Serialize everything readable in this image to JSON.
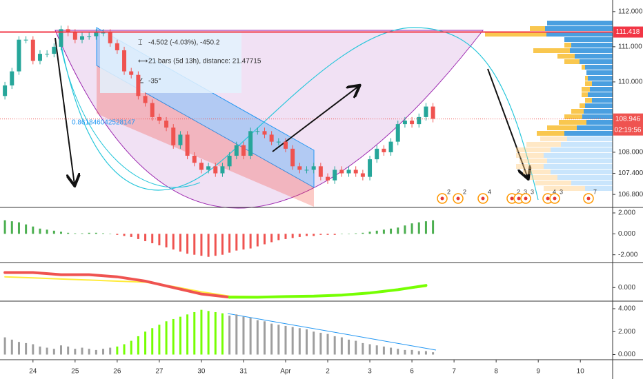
{
  "chart_data": [
    {
      "type": "candlestick",
      "x": [
        0,
        1,
        2,
        3,
        4,
        5,
        6,
        7,
        8,
        9,
        10,
        11,
        12,
        13,
        14,
        15,
        16,
        17,
        18,
        19,
        20,
        21,
        22,
        23,
        24,
        25,
        26,
        27,
        28,
        29,
        30,
        31,
        32,
        33,
        34,
        35,
        36,
        37,
        38,
        39,
        40,
        41,
        42,
        43,
        44,
        45,
        46,
        47,
        48,
        49,
        50,
        51,
        52,
        53,
        54,
        55,
        56,
        57,
        58,
        59,
        60,
        61
      ],
      "open": [
        109.6,
        109.9,
        110.3,
        111.2,
        111.2,
        110.6,
        110.8,
        110.8,
        111.0,
        111.5,
        111.4,
        111.2,
        111.3,
        111.3,
        111.4,
        111.4,
        111.1,
        110.9,
        110.3,
        110.2,
        109.6,
        109.4,
        109.0,
        108.9,
        108.7,
        108.2,
        108.5,
        107.9,
        107.7,
        107.5,
        107.6,
        107.4,
        107.6,
        107.9,
        108.2,
        107.9,
        108.6,
        108.6,
        108.5,
        108.3,
        108.3,
        108.1,
        107.6,
        107.5,
        107.5,
        107.6,
        107.3,
        107.2,
        107.5,
        107.4,
        107.5,
        107.4,
        107.3,
        107.8,
        108.1,
        108.0,
        108.3,
        108.8,
        108.9,
        108.8,
        109.0,
        109.3
      ],
      "high": [
        110.0,
        110.4,
        111.3,
        111.3,
        111.3,
        110.9,
        110.9,
        111.1,
        111.6,
        111.6,
        111.5,
        111.4,
        111.4,
        111.5,
        111.5,
        111.5,
        111.2,
        111.0,
        110.4,
        110.3,
        109.7,
        109.5,
        109.1,
        109.0,
        108.8,
        108.6,
        108.6,
        108.0,
        107.8,
        107.7,
        107.7,
        107.7,
        108.0,
        108.3,
        108.3,
        108.7,
        108.7,
        108.7,
        108.6,
        108.4,
        108.4,
        108.2,
        107.7,
        107.6,
        107.7,
        107.7,
        107.4,
        107.6,
        107.6,
        107.6,
        107.6,
        107.5,
        107.9,
        108.2,
        108.2,
        108.4,
        108.9,
        109.0,
        109.0,
        109.1,
        109.4,
        109.4
      ],
      "low": [
        109.5,
        109.8,
        110.2,
        111.1,
        110.5,
        110.5,
        110.7,
        110.7,
        110.9,
        111.3,
        111.1,
        111.1,
        111.2,
        111.2,
        111.3,
        111.0,
        110.8,
        110.2,
        110.1,
        109.5,
        109.3,
        108.9,
        108.8,
        108.6,
        108.1,
        108.1,
        107.8,
        107.6,
        107.4,
        107.4,
        107.3,
        107.3,
        107.5,
        107.8,
        107.8,
        107.8,
        108.5,
        108.4,
        108.2,
        108.2,
        108.0,
        107.5,
        107.4,
        107.4,
        107.4,
        107.2,
        107.1,
        107.1,
        107.3,
        107.3,
        107.3,
        107.2,
        107.2,
        107.7,
        107.9,
        107.9,
        108.2,
        108.7,
        108.7,
        108.7,
        108.9,
        108.85
      ],
      "close": [
        109.9,
        110.3,
        111.2,
        111.2,
        110.6,
        110.8,
        110.8,
        111.0,
        111.5,
        111.4,
        111.2,
        111.3,
        111.3,
        111.4,
        111.4,
        111.1,
        110.9,
        110.3,
        110.2,
        109.6,
        109.4,
        109.0,
        108.9,
        108.7,
        108.2,
        108.5,
        107.9,
        107.7,
        107.5,
        107.6,
        107.4,
        107.6,
        107.9,
        108.2,
        107.9,
        108.6,
        108.6,
        108.5,
        108.3,
        108.3,
        108.1,
        107.6,
        107.5,
        107.5,
        107.6,
        107.3,
        107.2,
        107.5,
        107.4,
        107.5,
        107.4,
        107.3,
        107.8,
        108.1,
        108.0,
        108.3,
        108.8,
        108.9,
        108.8,
        109.0,
        109.3,
        108.95
      ],
      "up_color": "#26a69a",
      "down_color": "#ef5350",
      "xlim": [
        -0.7,
        86.6
      ],
      "xticks": [
        {
          "value": 4,
          "label": "24"
        },
        {
          "value": 10,
          "label": "25"
        },
        {
          "value": 16,
          "label": "26"
        },
        {
          "value": 22,
          "label": "27"
        },
        {
          "value": 28,
          "label": "30"
        },
        {
          "value": 34,
          "label": "31"
        },
        {
          "value": 40,
          "label": "Apr"
        },
        {
          "value": 46,
          "label": "2"
        },
        {
          "value": 52,
          "label": "3"
        },
        {
          "value": 58,
          "label": "6"
        },
        {
          "value": 64,
          "label": "7"
        },
        {
          "value": 70,
          "label": "8"
        },
        {
          "value": 76,
          "label": "9"
        },
        {
          "value": 82,
          "label": "10"
        }
      ],
      "ylim": [
        106.45,
        112.33
      ],
      "yticks": [
        {
          "value": 112,
          "label": "112.000"
        },
        {
          "value": 111,
          "label": "111.000"
        },
        {
          "value": 110,
          "label": "110.000"
        },
        {
          "value": 108,
          "label": "108.000"
        },
        {
          "value": 107.4,
          "label": "107.400"
        },
        {
          "value": 106.8,
          "label": "106.800"
        }
      ],
      "level": 111.418,
      "last_price": 108.946,
      "countdown": "02:19:56",
      "annotations": {
        "price_range": "-4.502 (-4.03%), -450.2",
        "bars_range": "21 bars (5d 13h), distance: 21.47715",
        "angle": "-35°",
        "fib_ratio": "0.861846042528147"
      },
      "events": [
        2,
        2,
        4,
        2,
        3,
        3,
        4,
        3,
        7
      ]
    },
    {
      "type": "histogram",
      "x": [
        0,
        1,
        2,
        3,
        4,
        5,
        6,
        7,
        8,
        9,
        10,
        11,
        12,
        13,
        14,
        15,
        16,
        17,
        18,
        19,
        20,
        21,
        22,
        23,
        24,
        25,
        26,
        27,
        28,
        29,
        30,
        31,
        32,
        33,
        34,
        35,
        36,
        37,
        38,
        39,
        40,
        41,
        42,
        43,
        44,
        45,
        46,
        47,
        48,
        49,
        50,
        51,
        52,
        53,
        54,
        55,
        56,
        57,
        58,
        59,
        60,
        61
      ],
      "xlim": [
        -0.7,
        86.6
      ],
      "ylim": [
        -2.68,
        2.46
      ],
      "yticks": [
        {
          "value": 2,
          "label": "2.000"
        },
        {
          "value": 0,
          "label": "0.000"
        },
        {
          "value": -2,
          "label": "-2.000"
        }
      ],
      "series": [
        {
          "color": "#4caf50",
          "negative_color": "#ef5350",
          "values": [
            1.3,
            1.2,
            1.1,
            0.9,
            0.7,
            0.5,
            0.4,
            0.3,
            0.2,
            0.1,
            0.05,
            0.05,
            0.1,
            0.1,
            0.05,
            0,
            -0.1,
            -0.2,
            -0.3,
            -0.5,
            -0.7,
            -0.9,
            -1.1,
            -1.3,
            -1.5,
            -1.7,
            -1.9,
            -2.0,
            -2.1,
            -2.2,
            -2.1,
            -2.0,
            -1.8,
            -1.6,
            -1.5,
            -1.4,
            -1.2,
            -1.0,
            -0.8,
            -0.6,
            -0.5,
            -0.4,
            -0.3,
            -0.2,
            -0.2,
            -0.1,
            -0.1,
            -0.1,
            0,
            0,
            0.05,
            0.1,
            0.2,
            0.3,
            0.4,
            0.5,
            0.6,
            0.8,
            1.0,
            1.1,
            1.2,
            1.3
          ]
        }
      ]
    },
    {
      "type": "line",
      "x": [
        0,
        4,
        8,
        12,
        16,
        20,
        24,
        28,
        32,
        36,
        40,
        44,
        48,
        52,
        56,
        60
      ],
      "xlim": [
        -0.7,
        86.6
      ],
      "ylim": [
        -0.6,
        1.1
      ],
      "yticks": [
        {
          "value": 0,
          "label": "0.000"
        }
      ],
      "series": [
        {
          "color": "#ffeb3b",
          "width": 2,
          "values": [
            0.5,
            0.45,
            0.4,
            0.35,
            0.3,
            0.25,
            0.05,
            -0.2,
            -0.4,
            -0.42,
            -0.4,
            -0.38,
            -0.35,
            -0.25,
            -0.1,
            0.05
          ]
        },
        {
          "color": "#ef5350",
          "width": 4,
          "values": [
            0.7,
            0.7,
            0.6,
            0.6,
            0.5,
            0.3,
            0.0,
            -0.3,
            -0.45,
            null,
            null,
            null,
            null,
            null,
            null,
            null
          ]
        },
        {
          "color": "#76ff03",
          "width": 4,
          "values": [
            null,
            null,
            null,
            null,
            null,
            null,
            null,
            null,
            -0.45,
            -0.45,
            -0.42,
            -0.4,
            -0.35,
            -0.25,
            -0.1,
            0.1
          ]
        }
      ]
    },
    {
      "type": "histogram",
      "x": [
        0,
        1,
        2,
        3,
        4,
        5,
        6,
        7,
        8,
        9,
        10,
        11,
        12,
        13,
        14,
        15,
        16,
        17,
        18,
        19,
        20,
        21,
        22,
        23,
        24,
        25,
        26,
        27,
        28,
        29,
        30,
        31,
        32,
        33,
        34,
        35,
        36,
        37,
        38,
        39,
        40,
        41,
        42,
        43,
        44,
        45,
        46,
        47,
        48,
        49,
        50,
        51,
        52,
        53,
        54,
        55,
        56,
        57,
        58,
        59,
        60,
        61
      ],
      "xlim": [
        -0.7,
        86.6
      ],
      "ylim": [
        -0.45,
        4.6
      ],
      "yticks": [
        {
          "value": 4,
          "label": "4.000"
        },
        {
          "value": 2,
          "label": "2.000"
        },
        {
          "value": 0,
          "label": "0.000"
        }
      ],
      "series": [
        {
          "color": "#9e9e9e",
          "values": [
            1.5,
            1.3,
            1.1,
            1.0,
            0.9,
            0.7,
            0.6,
            0.5,
            0.8,
            0.7,
            0.5,
            0.6,
            0.5,
            0.4,
            0.5,
            0.6,
            null,
            null,
            null,
            null,
            null,
            null,
            null,
            null,
            null,
            null,
            null,
            null,
            null,
            null,
            null,
            null,
            3.4,
            3.5,
            3.3,
            3.2,
            3.0,
            2.9,
            2.7,
            2.6,
            2.5,
            2.4,
            2.3,
            2.2,
            2.0,
            1.9,
            1.8,
            1.6,
            1.5,
            1.3,
            1.2,
            1.0,
            0.9,
            0.8,
            0.7,
            0.6,
            0.5,
            0.4,
            0.4,
            0.3,
            0.3,
            0.2
          ]
        },
        {
          "color": "#76ff03",
          "values": [
            null,
            null,
            null,
            null,
            null,
            null,
            null,
            null,
            null,
            null,
            null,
            null,
            null,
            null,
            null,
            null,
            0.7,
            0.9,
            1.2,
            1.6,
            2.0,
            2.3,
            2.6,
            2.9,
            3.1,
            3.3,
            3.5,
            3.7,
            3.9,
            3.8,
            3.7,
            3.6,
            null,
            null,
            null,
            null,
            null,
            null,
            null,
            null,
            null,
            null,
            null,
            null,
            null,
            null,
            null,
            null,
            null,
            null,
            null,
            null,
            null,
            null,
            null,
            null,
            null,
            null,
            null,
            null,
            null,
            null
          ]
        }
      ]
    }
  ]
}
